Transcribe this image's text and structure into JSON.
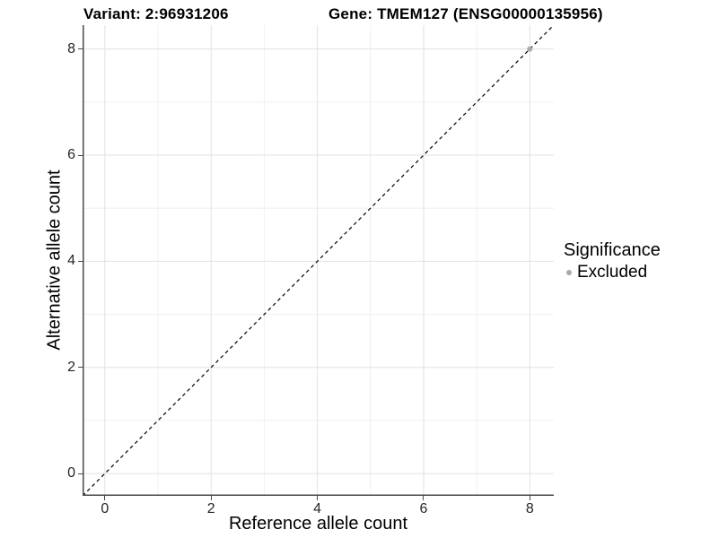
{
  "chart_data": {
    "type": "scatter",
    "title_variant": "Variant: 2:96931206",
    "title_gene": "Gene: TMEM127 (ENSG00000135956)",
    "xlabel": "Reference allele count",
    "ylabel": "Alternative allele count",
    "xlim": [
      -0.42,
      8.45
    ],
    "ylim": [
      -0.42,
      8.45
    ],
    "xticks": [
      0,
      2,
      4,
      6,
      8
    ],
    "yticks": [
      0,
      2,
      4,
      6,
      8
    ],
    "minor_xticks": [
      1,
      3,
      5,
      7
    ],
    "minor_yticks": [
      1,
      3,
      5,
      7
    ],
    "grid": "major+minor",
    "reference_line": {
      "type": "identity",
      "slope": 1,
      "intercept": 0,
      "style": "dashed",
      "color": "#000000"
    },
    "points": [
      {
        "x": 8,
        "y": 8,
        "significance": "Excluded"
      }
    ],
    "legend": {
      "title": "Significance",
      "position": "right",
      "entries": [
        {
          "label": "Excluded",
          "color": "#a9a9a9"
        }
      ]
    },
    "colors": {
      "background": "#ffffff",
      "grid_major": "#e2e2e2",
      "grid_minor": "#f0f0f0",
      "axis_line": "#4a4a4a",
      "point_excluded": "#a9a9a9"
    }
  }
}
